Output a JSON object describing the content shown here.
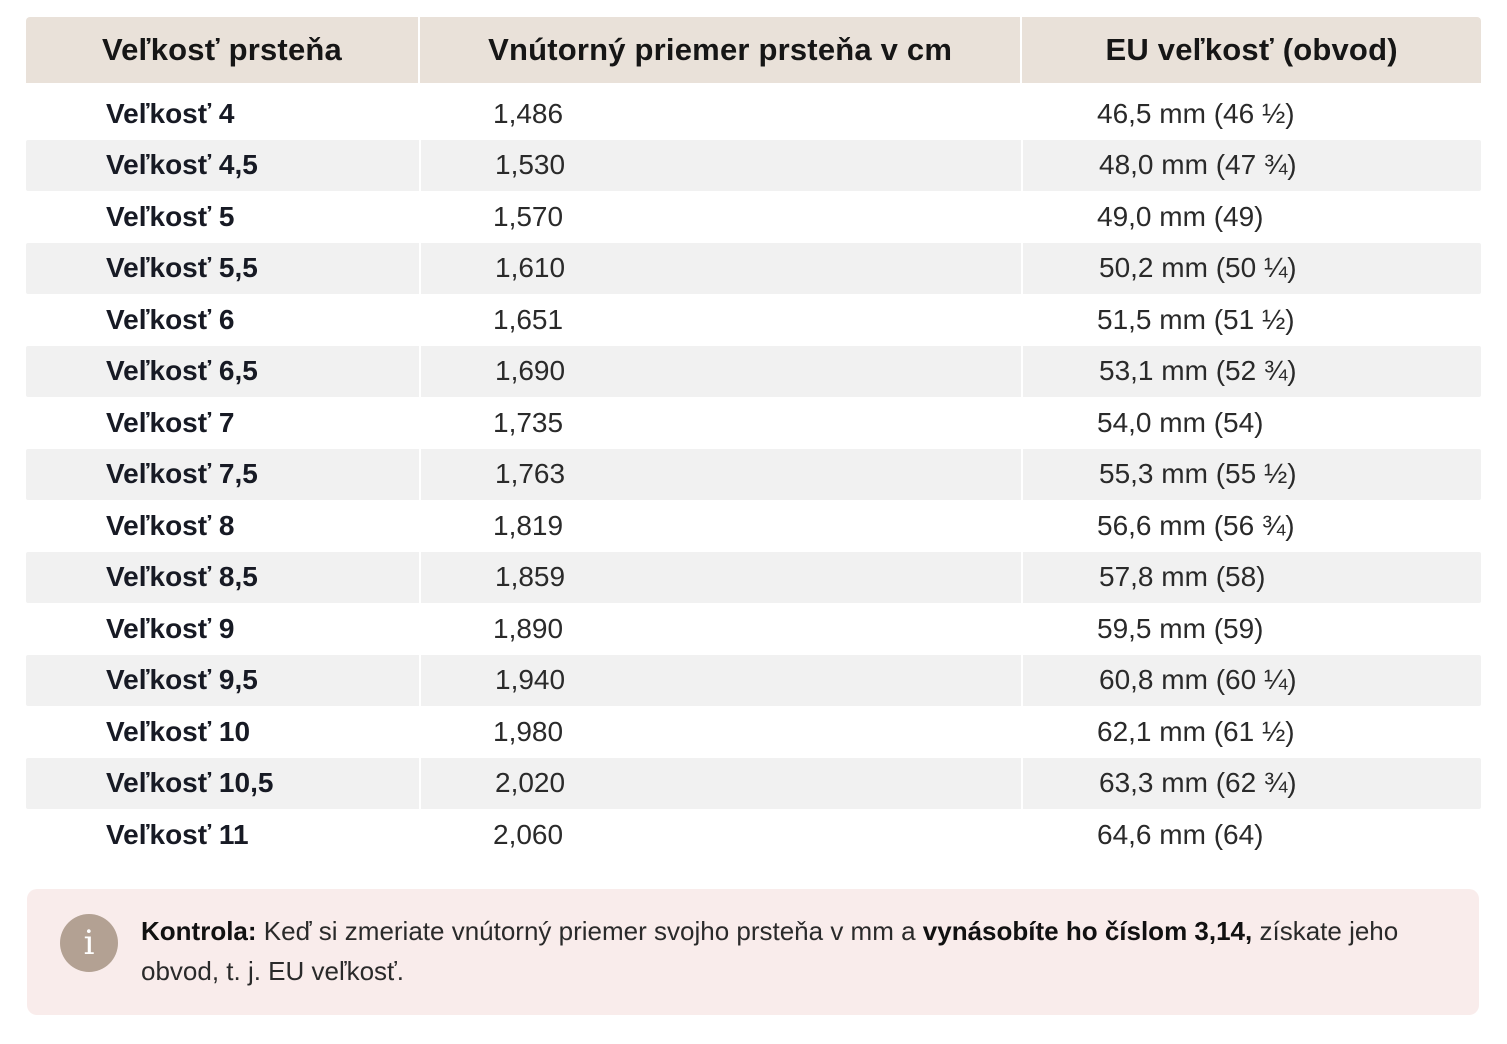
{
  "table": {
    "headers": [
      "Veľkosť prsteňa",
      "Vnútorný priemer prsteňa v cm",
      "EU veľkosť (obvod)"
    ],
    "rows": [
      {
        "size": "Veľkosť 4",
        "diameter": "1,486",
        "eu": "46,5 mm (46 ½)"
      },
      {
        "size": "Veľkosť 4,5",
        "diameter": "1,530",
        "eu": "48,0 mm (47 ¾)"
      },
      {
        "size": "Veľkosť 5",
        "diameter": "1,570",
        "eu": "49,0 mm (49)"
      },
      {
        "size": "Veľkosť 5,5",
        "diameter": "1,610",
        "eu": "50,2 mm (50 ¼)"
      },
      {
        "size": "Veľkosť 6",
        "diameter": "1,651",
        "eu": "51,5 mm (51 ½)"
      },
      {
        "size": "Veľkosť 6,5",
        "diameter": "1,690",
        "eu": "53,1 mm (52 ¾)"
      },
      {
        "size": "Veľkosť 7",
        "diameter": "1,735",
        "eu": "54,0 mm (54)"
      },
      {
        "size": "Veľkosť 7,5",
        "diameter": "1,763",
        "eu": "55,3 mm (55 ½)"
      },
      {
        "size": "Veľkosť 8",
        "diameter": "1,819",
        "eu": "56,6 mm (56 ¾)"
      },
      {
        "size": "Veľkosť 8,5",
        "diameter": "1,859",
        "eu": "57,8 mm (58)"
      },
      {
        "size": "Veľkosť 9",
        "diameter": "1,890",
        "eu": "59,5 mm (59)"
      },
      {
        "size": "Veľkosť 9,5",
        "diameter": "1,940",
        "eu": "60,8 mm (60 ¼)"
      },
      {
        "size": "Veľkosť 10",
        "diameter": "1,980",
        "eu": "62,1 mm (61 ½)"
      },
      {
        "size": "Veľkosť 10,5",
        "diameter": "2,020",
        "eu": "63,3 mm (62 ¾)"
      },
      {
        "size": "Veľkosť 11",
        "diameter": "2,060",
        "eu": "64,6 mm (64)"
      }
    ]
  },
  "note": {
    "icon": "info-icon",
    "icon_glyph": "i",
    "label": "Kontrola:",
    "text_before": " Keď si zmeriate vnútorný priemer svojho prsteňa v mm a ",
    "emphasis": "vynásobíte ho číslom 3,14,",
    "text_after": " získate jeho obvod, t. j. EU veľkosť."
  },
  "colors": {
    "header_bg": "#e9e1d9",
    "row_shade": "#f1f1f1",
    "note_bg": "#f9eceb",
    "icon_bg": "#b3a193"
  }
}
